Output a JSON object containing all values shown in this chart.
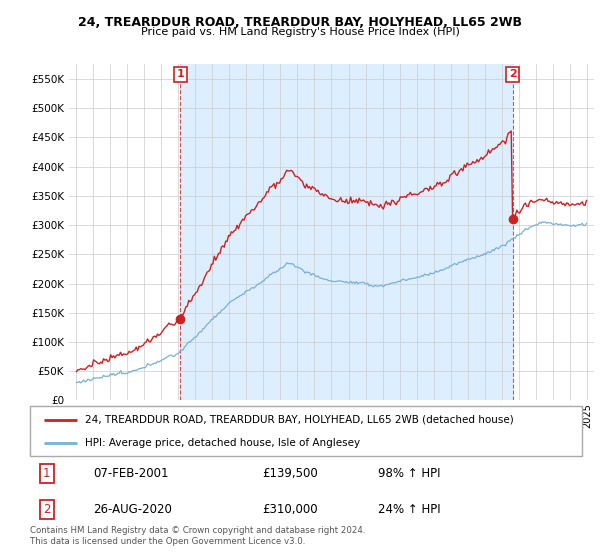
{
  "title1": "24, TREARDDUR ROAD, TREARDDUR BAY, HOLYHEAD, LL65 2WB",
  "title2": "Price paid vs. HM Land Registry's House Price Index (HPI)",
  "legend_line1": "24, TREARDDUR ROAD, TREARDDUR BAY, HOLYHEAD, LL65 2WB (detached house)",
  "legend_line2": "HPI: Average price, detached house, Isle of Anglesey",
  "sale1_date": "07-FEB-2001",
  "sale1_price": 139500,
  "sale1_label": "98% ↑ HPI",
  "sale2_date": "26-AUG-2020",
  "sale2_price": 310000,
  "sale2_label": "24% ↑ HPI",
  "footer": "Contains HM Land Registry data © Crown copyright and database right 2024.\nThis data is licensed under the Open Government Licence v3.0.",
  "red_color": "#cc2222",
  "blue_color": "#7ab0d4",
  "shade_color": "#ddeeff",
  "ylim_max": 575000,
  "ylim_min": 0,
  "sale1_t": 2001.125,
  "sale2_t": 2020.625
}
